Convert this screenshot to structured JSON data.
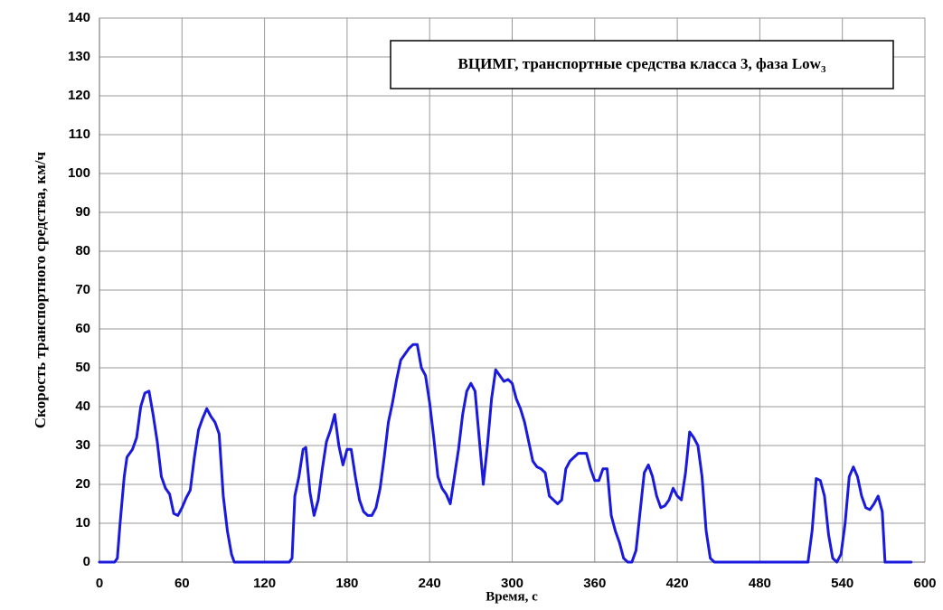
{
  "chart_data": {
    "type": "line",
    "title": "ВЦИМГ, транспортные средства класса 3, фаза Low",
    "title_subscript": "3",
    "xlabel": "Время, с",
    "ylabel": "Скорость транспортного средства, км/ч",
    "xlim": [
      0,
      600
    ],
    "xticks": [
      0,
      60,
      120,
      180,
      240,
      300,
      360,
      420,
      480,
      540,
      600
    ],
    "ylim": [
      0,
      140
    ],
    "yticks": [
      0,
      10,
      20,
      30,
      40,
      50,
      60,
      70,
      80,
      90,
      100,
      110,
      120,
      130,
      140
    ],
    "grid": true,
    "series": [
      {
        "name": "Low3",
        "color": "#1a1adc",
        "x": [
          0,
          11,
          13,
          15,
          18,
          20,
          24,
          27,
          30,
          33,
          36,
          39,
          42,
          45,
          48,
          51,
          54,
          57,
          60,
          63,
          66,
          69,
          72,
          75,
          78,
          81,
          84,
          87,
          90,
          93,
          96,
          98,
          138,
          140,
          142,
          145,
          148,
          150,
          153,
          156,
          159,
          162,
          165,
          168,
          171,
          174,
          177,
          180,
          183,
          186,
          189,
          192,
          195,
          198,
          201,
          204,
          207,
          210,
          213,
          216,
          219,
          222,
          225,
          228,
          231,
          234,
          237,
          240,
          243,
          246,
          249,
          252,
          255,
          258,
          261,
          264,
          267,
          270,
          273,
          276,
          279,
          282,
          285,
          288,
          291,
          294,
          297,
          300,
          303,
          306,
          309,
          312,
          315,
          318,
          321,
          324,
          327,
          330,
          333,
          336,
          339,
          342,
          345,
          348,
          351,
          354,
          357,
          360,
          363,
          366,
          369,
          372,
          375,
          378,
          381,
          384,
          387,
          390,
          393,
          396,
          399,
          402,
          405,
          408,
          411,
          414,
          417,
          420,
          423,
          426,
          429,
          432,
          435,
          438,
          441,
          444,
          447,
          515,
          518,
          521,
          524,
          527,
          530,
          533,
          536,
          539,
          542,
          545,
          548,
          551,
          554,
          557,
          560,
          563,
          566,
          569,
          571,
          590
        ],
        "values": [
          0,
          0,
          1,
          10,
          22,
          27,
          29,
          32,
          40,
          43.5,
          44,
          38,
          31,
          22,
          19,
          17.5,
          12.5,
          12,
          14,
          16.5,
          18.5,
          27,
          34,
          37,
          39.5,
          37.5,
          36,
          33,
          17,
          8,
          2,
          0,
          0,
          1,
          17,
          22,
          29,
          29.5,
          18,
          12,
          16,
          24,
          31,
          34,
          38,
          30,
          25,
          29,
          29,
          22,
          16,
          13,
          12,
          12,
          14,
          19,
          27,
          36,
          41,
          47,
          52,
          53.5,
          55,
          56,
          56,
          50,
          48,
          41,
          32,
          22,
          19,
          17.5,
          15,
          22,
          29,
          38,
          44,
          46,
          44,
          32,
          20,
          30,
          42,
          49.5,
          48,
          46.5,
          47,
          46,
          42,
          39.5,
          36,
          31,
          26,
          24.5,
          24,
          23,
          17,
          16,
          15,
          16,
          24,
          26,
          27,
          28,
          28,
          28,
          24,
          21,
          21,
          24,
          24,
          12,
          8,
          5,
          1,
          0,
          0,
          3,
          13,
          23,
          25,
          22,
          17,
          14,
          14.5,
          16,
          19,
          17,
          16,
          23,
          33.5,
          32,
          30,
          22,
          8,
          1,
          0,
          0,
          8,
          21.5,
          21,
          17,
          7,
          1,
          0,
          2,
          10,
          22,
          24.5,
          22,
          17,
          14,
          13.5,
          15,
          17,
          13,
          0,
          0
        ]
      }
    ]
  }
}
